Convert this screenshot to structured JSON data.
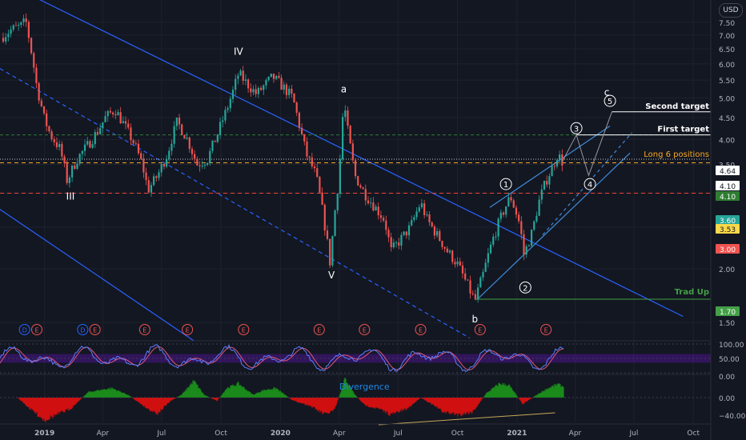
{
  "currency": "USD",
  "colors": {
    "background": "#131722",
    "up": "#26a69a",
    "down": "#ef5350",
    "channel": "#2962ff",
    "channel_light": "#3d8bd9",
    "first_target": "#2e7d32",
    "support": "#f44336",
    "long": "#f9a825",
    "gray_level": "#c8c8c8",
    "trad": "#43a047",
    "osc_fast": "#5b7fff",
    "osc_slow": "#e0577a",
    "osc_band": "#4a148c",
    "divergence": "#1e88e5",
    "macd_pos": "#1b8a1b",
    "macd_neg": "#d01010"
  },
  "chart_data": [
    {
      "type": "candlestick",
      "title": "",
      "y_scale": "log",
      "ylim": [
        1.36,
        8.45
      ],
      "xlim": [
        "2018-10-24",
        "2021-10-28"
      ],
      "x_ticks": [
        {
          "date": "2019-01-01",
          "label": "2019"
        },
        {
          "date": "2019-04-01",
          "label": "Apr"
        },
        {
          "date": "2019-07-01",
          "label": "Jul"
        },
        {
          "date": "2019-10-01",
          "label": "Oct"
        },
        {
          "date": "2020-01-01",
          "label": "2020"
        },
        {
          "date": "2020-04-01",
          "label": "Apr"
        },
        {
          "date": "2020-07-01",
          "label": "Jul"
        },
        {
          "date": "2020-10-01",
          "label": "Oct"
        },
        {
          "date": "2021-01-01",
          "label": "2021"
        },
        {
          "date": "2021-04-01",
          "label": "Apr"
        },
        {
          "date": "2021-07-01",
          "label": "Jul"
        },
        {
          "date": "2021-10-01",
          "label": "Oct"
        }
      ],
      "y_ticks": [
        "7.50",
        "7.00",
        "6.50",
        "6.00",
        "5.50",
        "5.00",
        "4.50",
        "4.00",
        "3.50",
        "3.00",
        "2.50",
        "2.00",
        "1.50"
      ],
      "price_path": [
        [
          "2018-10-25",
          6.9
        ],
        [
          "2018-11-10",
          7.2
        ],
        [
          "2018-11-25",
          7.35
        ],
        [
          "2018-12-03",
          7.55
        ],
        [
          "2018-12-10",
          6.6
        ],
        [
          "2018-12-20",
          5.3
        ],
        [
          "2018-12-31",
          4.5
        ],
        [
          "2019-01-10",
          4.1
        ],
        [
          "2019-01-25",
          3.8
        ],
        [
          "2019-02-05",
          3.2
        ],
        [
          "2019-02-20",
          3.6
        ],
        [
          "2019-03-10",
          3.9
        ],
        [
          "2019-03-25",
          4.2
        ],
        [
          "2019-04-05",
          4.5
        ],
        [
          "2019-04-20",
          4.7
        ],
        [
          "2019-05-05",
          4.3
        ],
        [
          "2019-05-20",
          3.9
        ],
        [
          "2019-06-01",
          3.5
        ],
        [
          "2019-06-10",
          3.05
        ],
        [
          "2019-06-25",
          3.3
        ],
        [
          "2019-07-10",
          3.7
        ],
        [
          "2019-07-25",
          4.4
        ],
        [
          "2019-08-10",
          4.0
        ],
        [
          "2019-08-25",
          3.5
        ],
        [
          "2019-09-10",
          3.6
        ],
        [
          "2019-09-25",
          4.1
        ],
        [
          "2019-10-10",
          4.7
        ],
        [
          "2019-10-20",
          5.2
        ],
        [
          "2019-10-28",
          5.7
        ],
        [
          "2019-11-10",
          5.4
        ],
        [
          "2019-11-25",
          5.1
        ],
        [
          "2019-12-05",
          5.3
        ],
        [
          "2019-12-20",
          5.6
        ],
        [
          "2020-01-05",
          5.3
        ],
        [
          "2020-01-20",
          5.0
        ],
        [
          "2020-02-01",
          4.2
        ],
        [
          "2020-02-10",
          3.7
        ],
        [
          "2020-02-25",
          3.3
        ],
        [
          "2020-03-10",
          2.5
        ],
        [
          "2020-03-18",
          2.05
        ],
        [
          "2020-03-25",
          2.7
        ],
        [
          "2020-04-01",
          3.3
        ],
        [
          "2020-04-08",
          4.9
        ],
        [
          "2020-04-15",
          4.1
        ],
        [
          "2020-04-25",
          3.3
        ],
        [
          "2020-05-10",
          3.0
        ],
        [
          "2020-05-25",
          2.8
        ],
        [
          "2020-06-10",
          2.6
        ],
        [
          "2020-06-20",
          2.2
        ],
        [
          "2020-07-01",
          2.3
        ],
        [
          "2020-07-20",
          2.5
        ],
        [
          "2020-08-05",
          2.85
        ],
        [
          "2020-08-15",
          2.6
        ],
        [
          "2020-08-30",
          2.4
        ],
        [
          "2020-09-15",
          2.2
        ],
        [
          "2020-10-01",
          2.05
        ],
        [
          "2020-10-15",
          1.85
        ],
        [
          "2020-10-28",
          1.68
        ],
        [
          "2020-11-10",
          1.95
        ],
        [
          "2020-11-25",
          2.35
        ],
        [
          "2020-12-10",
          2.7
        ],
        [
          "2020-12-22",
          2.95
        ],
        [
          "2021-01-05",
          2.55
        ],
        [
          "2021-01-12",
          2.15
        ],
        [
          "2021-01-25",
          2.45
        ],
        [
          "2021-02-05",
          2.9
        ],
        [
          "2021-02-15",
          3.2
        ],
        [
          "2021-02-25",
          3.45
        ],
        [
          "2021-03-05",
          3.7
        ],
        [
          "2021-03-12",
          3.55
        ]
      ],
      "wave_labels": [
        {
          "text": "III",
          "date": "2019-02-10",
          "price": 2.9
        },
        {
          "text": "IV",
          "date": "2019-10-28",
          "price": 6.3
        },
        {
          "text": "a",
          "date": "2020-04-08",
          "price": 5.15
        },
        {
          "text": "V",
          "date": "2020-03-20",
          "price": 1.9
        },
        {
          "text": "b",
          "date": "2020-10-28",
          "price": 1.5
        },
        {
          "text": "c",
          "date": "2021-05-20",
          "price": 5.06
        }
      ],
      "wave_circles": [
        {
          "text": "1",
          "date": "2020-12-15",
          "price": 3.15
        },
        {
          "text": "2",
          "date": "2021-01-14",
          "price": 1.81
        },
        {
          "text": "3",
          "date": "2021-04-03",
          "price": 4.25
        },
        {
          "text": "4",
          "date": "2021-04-24",
          "price": 3.15
        },
        {
          "text": "5",
          "date": "2021-05-25",
          "price": 4.92
        }
      ],
      "levels": [
        {
          "name": "Second target",
          "value": 4.64,
          "label": "4.64",
          "color_key": "background",
          "text_color": "#131722",
          "fill": "#ffffff"
        },
        {
          "name": "",
          "value": 4.1,
          "label": "4.10",
          "fill": "#ffffff",
          "text_color": "#131722"
        },
        {
          "name": "First target",
          "value": 4.1,
          "label": "4.10",
          "fill": "#2e7d32",
          "text_color": "#ffffff"
        },
        {
          "name": "",
          "value": 3.6,
          "label": "3.60",
          "fill": "#26a69a",
          "text_color": "#ffffff"
        },
        {
          "name": "Long 6 positions",
          "value": 3.53,
          "label": "3.53",
          "fill": "#f9d84a",
          "text_color": "#131722"
        },
        {
          "name": "",
          "value": 3.0,
          "label": "3.00",
          "fill": "#ef5350",
          "text_color": "#ffffff"
        },
        {
          "name": "Trad Up",
          "value": 1.7,
          "label": "1.70",
          "fill": "#43a047",
          "text_color": "#ffffff"
        }
      ],
      "annotations": [
        "Second target",
        "First target",
        "Long 6 positions",
        "Trad Up"
      ],
      "event_markers": [
        {
          "text": "D",
          "date": "2018-12-01"
        },
        {
          "text": "E",
          "date": "2018-12-20"
        },
        {
          "text": "D",
          "date": "2019-03-01"
        },
        {
          "text": "E",
          "date": "2019-03-20"
        },
        {
          "text": "E",
          "date": "2019-06-05"
        },
        {
          "text": "E",
          "date": "2019-08-10"
        },
        {
          "text": "E",
          "date": "2019-11-05"
        },
        {
          "text": "E",
          "date": "2020-03-01"
        },
        {
          "text": "E",
          "date": "2020-05-10"
        },
        {
          "text": "E",
          "date": "2020-08-05"
        },
        {
          "text": "E",
          "date": "2020-11-05"
        },
        {
          "text": "E",
          "date": "2021-02-15"
        }
      ]
    },
    {
      "type": "line",
      "title": "",
      "ylim": [
        0,
        100
      ],
      "y_ticks": [
        "100.00",
        "50.00",
        "0.00"
      ],
      "series": [
        {
          "color_key": "osc_fast"
        },
        {
          "color_key": "osc_slow"
        }
      ]
    },
    {
      "type": "area",
      "title": "",
      "annotation": "Divergence",
      "y_ticks": [
        "0.00",
        "−40.00"
      ],
      "values": [
        [
          "2018-10-25",
          0
        ],
        [
          "2018-11-20",
          0
        ],
        [
          "2018-12-10",
          -20
        ],
        [
          "2019-01-01",
          -40
        ],
        [
          "2019-01-20",
          -30
        ],
        [
          "2019-02-10",
          -20
        ],
        [
          "2019-03-10",
          10
        ],
        [
          "2019-04-15",
          17
        ],
        [
          "2019-05-10",
          5
        ],
        [
          "2019-06-10",
          -20
        ],
        [
          "2019-06-25",
          -28
        ],
        [
          "2019-07-15",
          -6
        ],
        [
          "2019-08-01",
          5
        ],
        [
          "2019-08-20",
          30
        ],
        [
          "2019-09-05",
          5
        ],
        [
          "2019-09-25",
          -6
        ],
        [
          "2019-10-10",
          17
        ],
        [
          "2019-10-28",
          25
        ],
        [
          "2019-11-20",
          5
        ],
        [
          "2019-12-05",
          13
        ],
        [
          "2019-12-25",
          17
        ],
        [
          "2020-01-20",
          -5
        ],
        [
          "2020-02-15",
          -14
        ],
        [
          "2020-03-10",
          -30
        ],
        [
          "2020-03-25",
          -22
        ],
        [
          "2020-04-10",
          34
        ],
        [
          "2020-04-25",
          6
        ],
        [
          "2020-05-10",
          -13
        ],
        [
          "2020-06-01",
          -20
        ],
        [
          "2020-06-20",
          -30
        ],
        [
          "2020-07-15",
          -20
        ],
        [
          "2020-08-05",
          0
        ],
        [
          "2020-08-20",
          -10
        ],
        [
          "2020-09-10",
          -26
        ],
        [
          "2020-10-05",
          -30
        ],
        [
          "2020-10-25",
          -25
        ],
        [
          "2020-11-15",
          8
        ],
        [
          "2020-12-05",
          25
        ],
        [
          "2020-12-20",
          22
        ],
        [
          "2021-01-10",
          -11
        ],
        [
          "2021-01-25",
          0
        ],
        [
          "2021-02-15",
          15
        ],
        [
          "2021-03-05",
          24
        ],
        [
          "2021-03-15",
          19
        ]
      ]
    }
  ]
}
